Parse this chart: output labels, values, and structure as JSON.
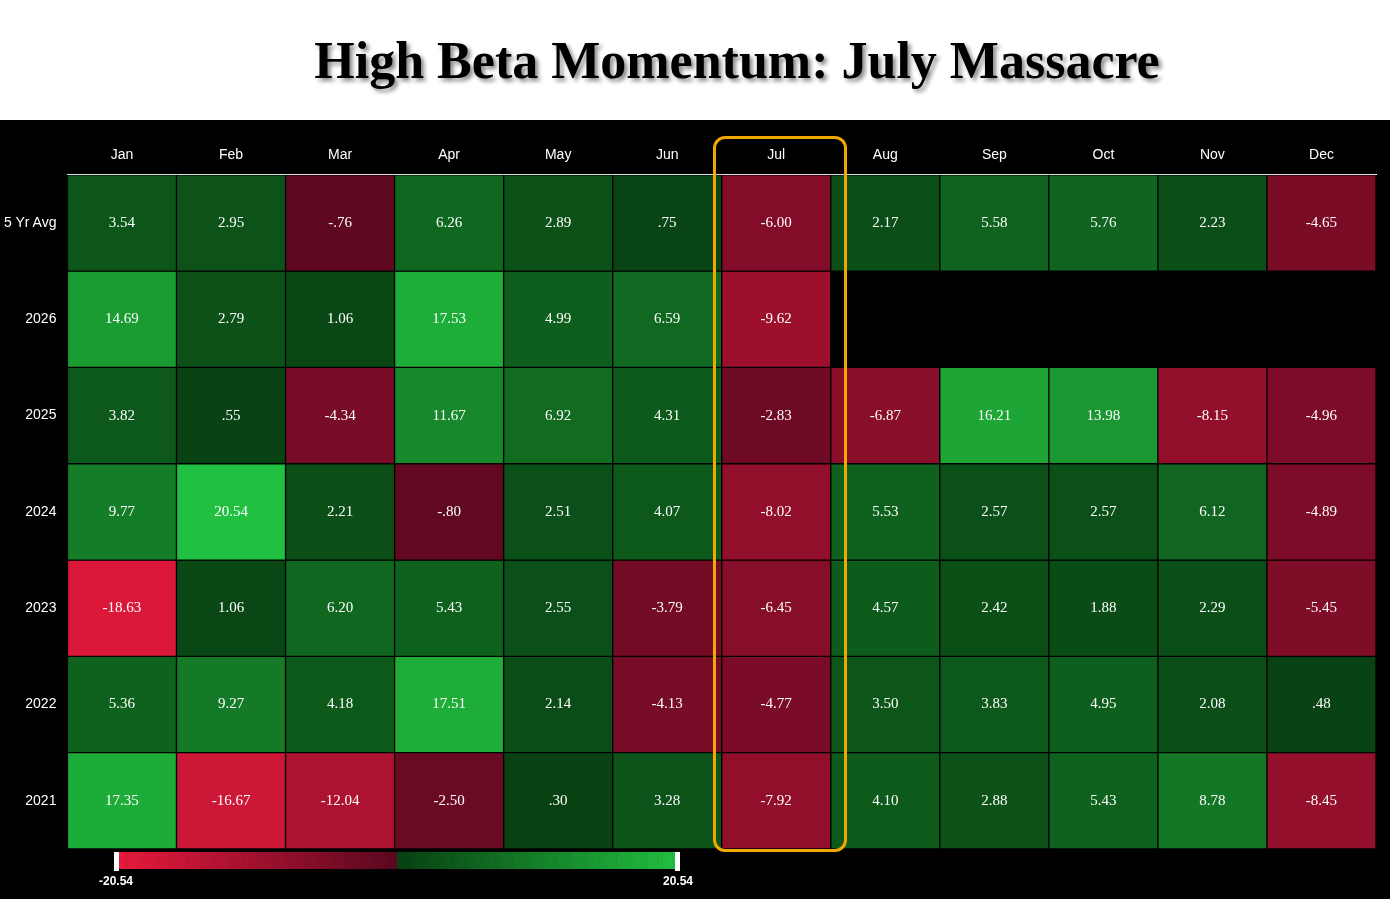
{
  "chart_data": {
    "type": "heatmap",
    "title": "High Beta Momentum: July Massacre",
    "categories": [
      "Jan",
      "Feb",
      "Mar",
      "Apr",
      "May",
      "Jun",
      "Jul",
      "Aug",
      "Sep",
      "Oct",
      "Nov",
      "Dec"
    ],
    "y_categories": [
      "5 Yr Avg",
      "2026",
      "2025",
      "2024",
      "2023",
      "2022",
      "2021"
    ],
    "cells": [
      [
        3.54,
        2.95,
        -0.76,
        6.26,
        2.89,
        0.75,
        -6.0,
        2.17,
        5.58,
        5.76,
        2.23,
        -4.65
      ],
      [
        14.69,
        2.79,
        1.06,
        17.53,
        4.99,
        6.59,
        -9.62,
        null,
        null,
        null,
        null,
        null
      ],
      [
        3.82,
        0.55,
        -4.34,
        11.67,
        6.92,
        4.31,
        -2.83,
        -6.87,
        16.21,
        13.98,
        -8.15,
        -4.96
      ],
      [
        9.77,
        20.54,
        2.21,
        -0.8,
        2.51,
        4.07,
        -8.02,
        5.53,
        2.57,
        2.57,
        6.12,
        -4.89
      ],
      [
        -18.63,
        1.06,
        6.2,
        5.43,
        2.55,
        -3.79,
        -6.45,
        4.57,
        2.42,
        1.88,
        2.29,
        -5.45
      ],
      [
        5.36,
        9.27,
        4.18,
        17.51,
        2.14,
        -4.13,
        -4.77,
        3.5,
        3.83,
        4.95,
        2.08,
        0.48
      ],
      [
        17.35,
        -16.67,
        -12.04,
        -2.5,
        0.3,
        3.28,
        -7.92,
        4.1,
        2.88,
        5.43,
        8.78,
        -8.45
      ]
    ],
    "cell_labels": [
      [
        "3.54",
        "2.95",
        "-.76",
        "6.26",
        "2.89",
        ".75",
        "-6.00",
        "2.17",
        "5.58",
        "5.76",
        "2.23",
        "-4.65"
      ],
      [
        "14.69",
        "2.79",
        "1.06",
        "17.53",
        "4.99",
        "6.59",
        "-9.62",
        null,
        null,
        null,
        null,
        null
      ],
      [
        "3.82",
        ".55",
        "-4.34",
        "11.67",
        "6.92",
        "4.31",
        "-2.83",
        "-6.87",
        "16.21",
        "13.98",
        "-8.15",
        "-4.96"
      ],
      [
        "9.77",
        "20.54",
        "2.21",
        "-.80",
        "2.51",
        "4.07",
        "-8.02",
        "5.53",
        "2.57",
        "2.57",
        "6.12",
        "-4.89"
      ],
      [
        "-18.63",
        "1.06",
        "6.20",
        "5.43",
        "2.55",
        "-3.79",
        "-6.45",
        "4.57",
        "2.42",
        "1.88",
        "2.29",
        "-5.45"
      ],
      [
        "5.36",
        "9.27",
        "4.18",
        "17.51",
        "2.14",
        "-4.13",
        "-4.77",
        "3.50",
        "3.83",
        "4.95",
        "2.08",
        ".48"
      ],
      [
        "17.35",
        "-16.67",
        "-12.04",
        "-2.50",
        ".30",
        "3.28",
        "-7.92",
        "4.10",
        "2.88",
        "5.43",
        "8.78",
        "-8.45"
      ]
    ],
    "clim": [
      -20.54,
      20.54
    ],
    "cticks": [
      -20.54,
      20.54
    ]
  }
}
